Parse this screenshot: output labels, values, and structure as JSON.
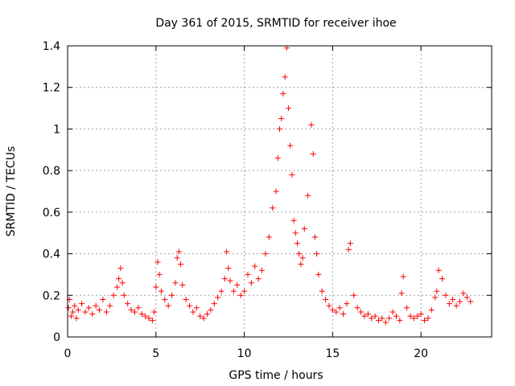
{
  "chart_data": {
    "type": "scatter",
    "title": "Day 361 of 2015, SRMTID for receiver ihoe",
    "xlabel": "GPS time / hours",
    "ylabel": "SRMTID / TECUs",
    "xlim": [
      0,
      24
    ],
    "ylim": [
      0,
      1.4
    ],
    "xticks": [
      0,
      5,
      10,
      15,
      20
    ],
    "yticks": [
      0,
      0.2,
      0.4,
      0.6,
      0.8,
      1,
      1.2,
      1.4
    ],
    "xtick_labels": [
      "0",
      "5",
      "10",
      "15",
      "20"
    ],
    "ytick_labels": [
      "0",
      "0.2",
      "0.4",
      "0.6",
      "0.8",
      "1",
      "1.2",
      "1.4"
    ],
    "grid": true,
    "marker": "plus",
    "color": "#ff0000",
    "series": [
      {
        "name": "SRMTID",
        "x": [
          0.05,
          0.1,
          0.2,
          0.3,
          0.4,
          0.5,
          0.6,
          0.8,
          1.0,
          1.2,
          1.4,
          1.6,
          1.8,
          2.0,
          2.2,
          2.4,
          2.6,
          2.8,
          2.9,
          3.0,
          3.1,
          3.2,
          3.4,
          3.6,
          3.8,
          4.0,
          4.2,
          4.4,
          4.6,
          4.8,
          4.9,
          5.0,
          5.1,
          5.2,
          5.3,
          5.5,
          5.7,
          5.9,
          6.1,
          6.2,
          6.3,
          6.4,
          6.5,
          6.7,
          6.9,
          7.1,
          7.3,
          7.5,
          7.7,
          7.9,
          8.1,
          8.3,
          8.5,
          8.7,
          8.9,
          9.0,
          9.1,
          9.2,
          9.4,
          9.6,
          9.8,
          10.0,
          10.2,
          10.4,
          10.6,
          10.8,
          11.0,
          11.2,
          11.4,
          11.6,
          11.8,
          11.9,
          12.0,
          12.1,
          12.2,
          12.3,
          12.4,
          12.5,
          12.6,
          12.7,
          12.8,
          12.9,
          13.0,
          13.1,
          13.2,
          13.3,
          13.4,
          13.6,
          13.8,
          13.9,
          14.0,
          14.1,
          14.2,
          14.4,
          14.6,
          14.8,
          15.0,
          15.2,
          15.4,
          15.6,
          15.8,
          15.9,
          16.0,
          16.2,
          16.4,
          16.6,
          16.8,
          17.0,
          17.2,
          17.4,
          17.6,
          17.8,
          18.0,
          18.2,
          18.4,
          18.6,
          18.8,
          18.9,
          19.0,
          19.2,
          19.4,
          19.6,
          19.8,
          20.0,
          20.2,
          20.4,
          20.6,
          20.8,
          20.9,
          21.0,
          21.2,
          21.4,
          21.6,
          21.8,
          22.0,
          22.2,
          22.4,
          22.6,
          22.8
        ],
        "y": [
          0.14,
          0.18,
          0.1,
          0.12,
          0.15,
          0.09,
          0.13,
          0.16,
          0.12,
          0.14,
          0.11,
          0.15,
          0.13,
          0.18,
          0.12,
          0.15,
          0.2,
          0.24,
          0.28,
          0.33,
          0.26,
          0.2,
          0.16,
          0.13,
          0.12,
          0.14,
          0.11,
          0.1,
          0.09,
          0.08,
          0.12,
          0.24,
          0.36,
          0.3,
          0.22,
          0.18,
          0.15,
          0.2,
          0.26,
          0.38,
          0.41,
          0.35,
          0.25,
          0.18,
          0.15,
          0.12,
          0.14,
          0.1,
          0.09,
          0.11,
          0.13,
          0.16,
          0.19,
          0.22,
          0.28,
          0.41,
          0.33,
          0.27,
          0.22,
          0.25,
          0.2,
          0.22,
          0.3,
          0.26,
          0.34,
          0.28,
          0.32,
          0.4,
          0.48,
          0.62,
          0.7,
          0.86,
          1.0,
          1.05,
          1.17,
          1.25,
          1.39,
          1.1,
          0.92,
          0.78,
          0.56,
          0.5,
          0.45,
          0.4,
          0.35,
          0.38,
          0.52,
          0.68,
          1.02,
          0.88,
          0.48,
          0.4,
          0.3,
          0.22,
          0.18,
          0.15,
          0.13,
          0.12,
          0.14,
          0.11,
          0.16,
          0.42,
          0.45,
          0.2,
          0.14,
          0.12,
          0.1,
          0.11,
          0.09,
          0.1,
          0.08,
          0.09,
          0.07,
          0.09,
          0.12,
          0.1,
          0.08,
          0.21,
          0.29,
          0.14,
          0.1,
          0.09,
          0.1,
          0.11,
          0.08,
          0.09,
          0.13,
          0.19,
          0.22,
          0.32,
          0.28,
          0.2,
          0.16,
          0.18,
          0.15,
          0.17,
          0.21,
          0.19,
          0.17
        ]
      }
    ]
  }
}
